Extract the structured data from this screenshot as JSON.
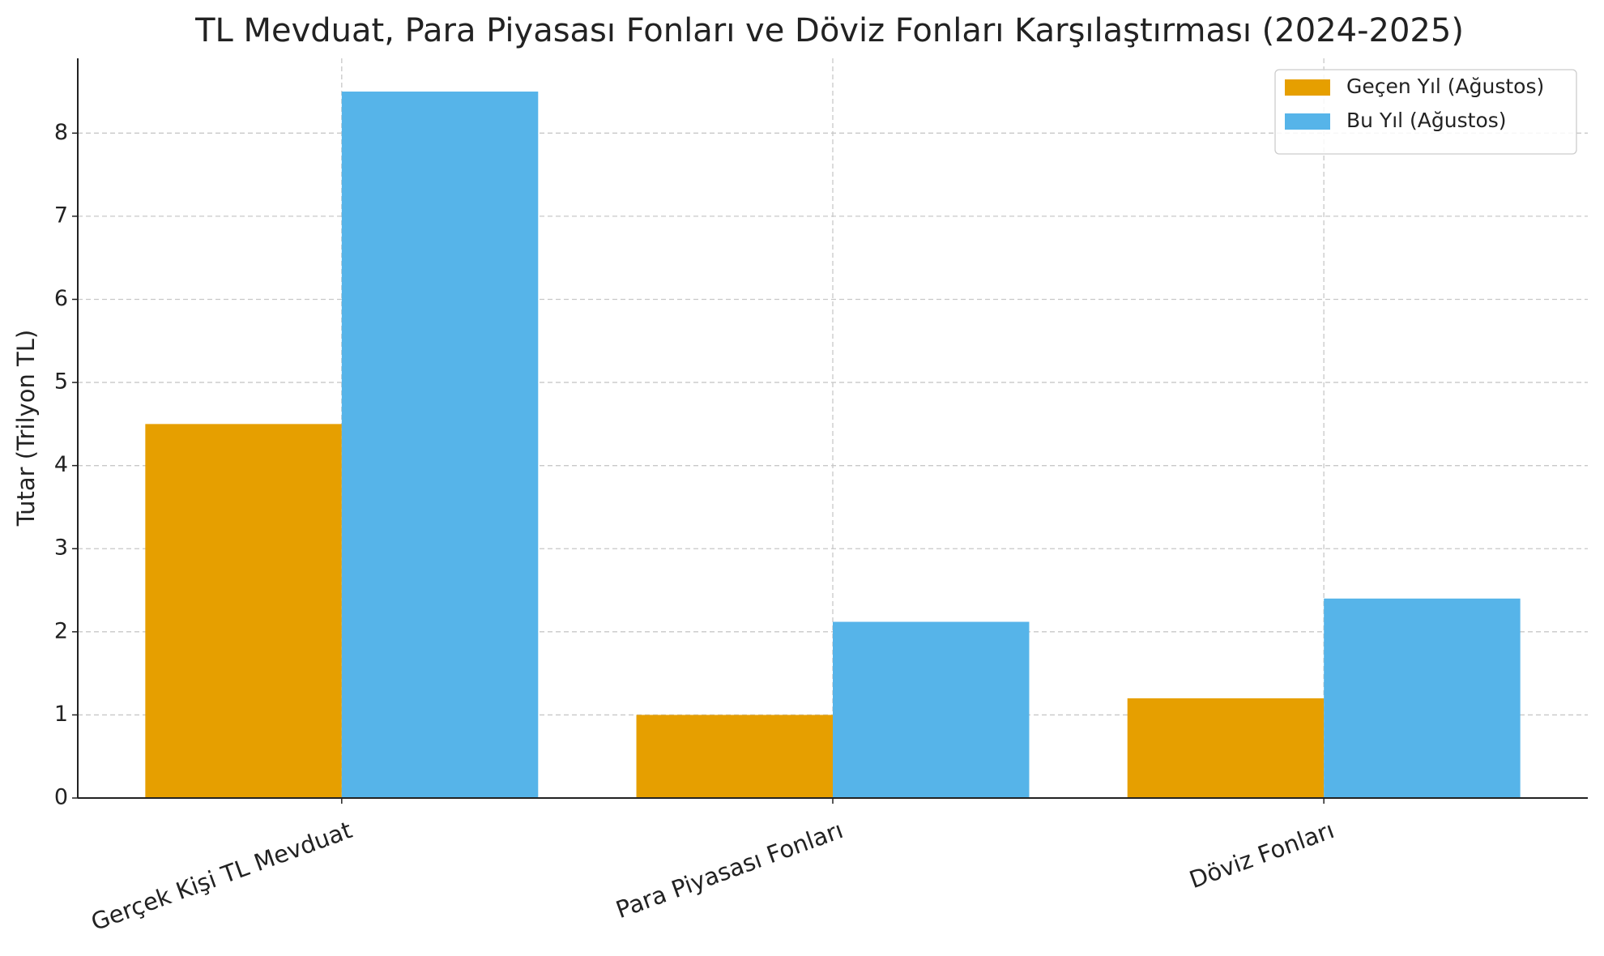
{
  "chart_data": {
    "type": "bar",
    "title": "TL Mevduat, Para Piyasası Fonları ve Döviz Fonları Karşılaştırması (2024-2025)",
    "y_label": "Tutar (Trilyon TL)",
    "categories": [
      "Gerçek Kişi TL Mevduat",
      "Para Piyasası Fonları",
      "Döviz Fonları"
    ],
    "series": [
      {
        "name": "Geçen Yıl (Ağustos)",
        "color": "#E69F00",
        "values": [
          4.5,
          1.0,
          1.2
        ]
      },
      {
        "name": "Bu Yıl (Ağustos)",
        "color": "#56B4E9",
        "values": [
          8.5,
          2.12,
          2.4
        ]
      }
    ],
    "ylim": [
      0,
      8.9
    ],
    "yticks": [
      0,
      1,
      2,
      3,
      4,
      5,
      6,
      7,
      8
    ],
    "grid": true,
    "legend": "upper right"
  }
}
